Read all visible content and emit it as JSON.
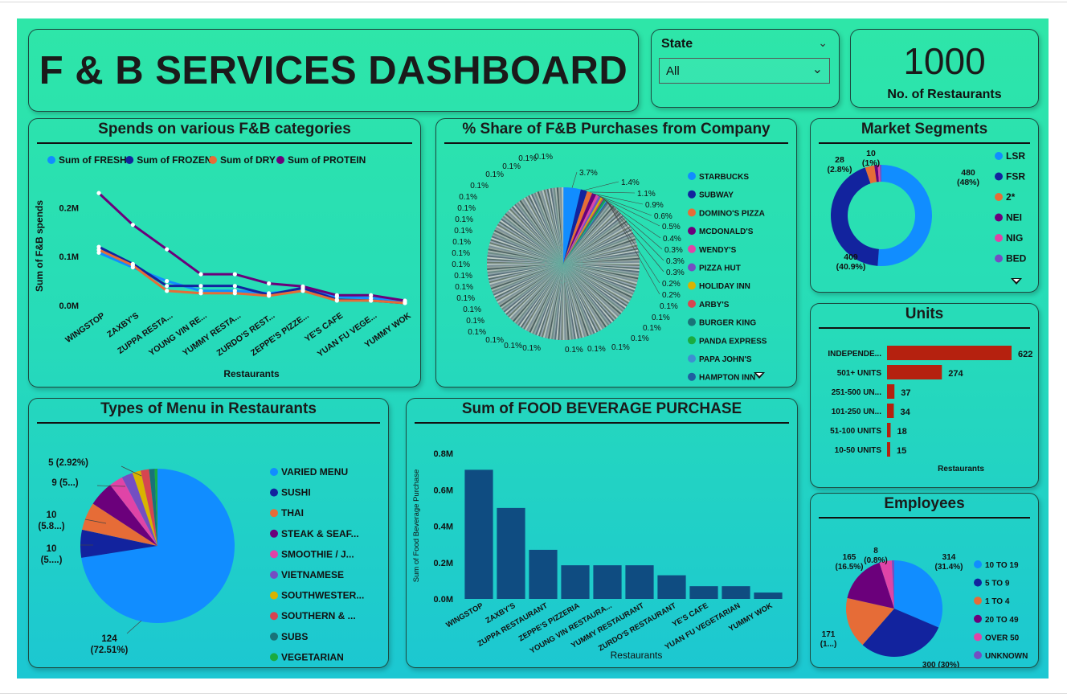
{
  "header": {
    "title": "F & B  SERVICES DASHBOARD"
  },
  "slicer": {
    "label": "State",
    "value": "All"
  },
  "kpi": {
    "value": "1000",
    "label": "No. of Restaurants"
  },
  "colors": {
    "c1": "#118DFF",
    "c2": "#12239E",
    "c3": "#E66C37",
    "c4": "#6B007B",
    "c5": "#E044A7",
    "c6": "#744EC2",
    "c7": "#D9B300",
    "c8": "#D64550",
    "c9": "#197278",
    "c10": "#1AAB40",
    "units_bar": "#B5210F",
    "purchase_bar": "#0F4C81"
  },
  "charts": {
    "spends": {
      "title": "Spends on various F&B categories",
      "chart_data": {
        "type": "line",
        "categories": [
          "WINGSTOP",
          "ZAXBY'S",
          "ZUPPA RESTA...",
          "YOUNG VIN RE...",
          "YUMMY RESTA...",
          "ZURDO'S REST...",
          "ZEPPE'S PIZZE...",
          "YE'S CAFE",
          "YUAN FU VEGE...",
          "YUMMY WOK"
        ],
        "series": [
          {
            "name": "Sum of FRESH",
            "values": [
              0.108,
              0.078,
              0.05,
              0.03,
              0.03,
              0.025,
              0.032,
              0.018,
              0.015,
              0.008
            ]
          },
          {
            "name": "Sum of FROZEN",
            "values": [
              0.12,
              0.085,
              0.04,
              0.04,
              0.04,
              0.022,
              0.036,
              0.012,
              0.01,
              0.005
            ]
          },
          {
            "name": "Sum of DRY",
            "values": [
              0.114,
              0.082,
              0.03,
              0.025,
              0.025,
              0.02,
              0.03,
              0.01,
              0.01,
              0.005
            ]
          },
          {
            "name": "Sum of PROTEIN",
            "values": [
              0.23,
              0.165,
              0.115,
              0.064,
              0.064,
              0.045,
              0.039,
              0.021,
              0.021,
              0.01
            ]
          }
        ],
        "ylabel": "Sum of F&B spends",
        "xlabel": "Restaurants",
        "yticks": [
          "0.0M",
          "0.1M",
          "0.2M"
        ],
        "ylim": [
          0,
          0.25
        ]
      }
    },
    "share": {
      "title": "% Share of F&B Purchases from Company",
      "chart_data": {
        "type": "pie",
        "legend": [
          "STARBUCKS",
          "SUBWAY",
          "DOMINO'S PIZZA",
          "MCDONALD'S",
          "WENDY'S",
          "PIZZA HUT",
          "HOLIDAY INN",
          "ARBY'S",
          "BURGER KING",
          "PANDA EXPRESS",
          "PAPA JOHN'S",
          "HAMPTON INN"
        ],
        "labelled_slices": [
          "3.7%",
          "1.4%",
          "1.1%",
          "0.9%",
          "0.6%",
          "0.5%",
          "0.4%",
          "0.3%",
          "0.3%",
          "0.3%",
          "0.2%",
          "0.2%"
        ],
        "small_slice_label": "0.1%",
        "small_slice_count": 42,
        "values": [
          3.7,
          1.4,
          1.1,
          0.9,
          0.6,
          0.5,
          0.4,
          0.3,
          0.3,
          0.3,
          0.2,
          0.2
        ]
      }
    },
    "segments": {
      "title": "Market Segments",
      "chart_data": {
        "type": "pie",
        "donut": true,
        "labels": [
          "LSR",
          "FSR",
          "2*",
          "NEI",
          "NIG",
          "BED"
        ],
        "values": [
          480,
          409,
          28,
          10,
          6,
          5
        ],
        "slice_labels": [
          [
            "480",
            "(48%)"
          ],
          [
            "409",
            "(40.9%)"
          ],
          [
            "28",
            "(2.8%)"
          ],
          [
            "10",
            "(1%)"
          ]
        ]
      }
    },
    "units": {
      "title": "Units",
      "chart_data": {
        "type": "bar",
        "orientation": "horizontal",
        "categories": [
          "INDEPENDE...",
          "501+ UNITS",
          "251-500 UN...",
          "101-250 UN...",
          "51-100 UNITS",
          "10-50 UNITS"
        ],
        "values": [
          622,
          274,
          37,
          34,
          18,
          15
        ],
        "labels": [
          "622",
          "274",
          "37",
          "34",
          "18",
          "15"
        ],
        "xlabel": "Restaurants"
      }
    },
    "menu": {
      "title": "Types of Menu in Restaurants",
      "chart_data": {
        "type": "pie",
        "legend": [
          "VARIED MENU",
          "SUSHI",
          "THAI",
          "STEAK & SEAF...",
          "SMOOTHIE / J...",
          "VIETNAMESE",
          "SOUTHWESTER...",
          "SOUTHERN & ...",
          "SUBS",
          "VEGETARIAN"
        ],
        "values": [
          124,
          10,
          10,
          9,
          5,
          4,
          3,
          3,
          2,
          1
        ],
        "slice_labels": [
          [
            "124",
            "(72.51%)"
          ],
          [
            "10",
            "(5....)"
          ],
          [
            "10",
            "(5.8...)"
          ],
          [
            "9 (5...)"
          ],
          [
            "5 (2.92%)"
          ]
        ]
      }
    },
    "purchase": {
      "title": "Sum of FOOD BEVERAGE PURCHASE",
      "chart_data": {
        "type": "bar",
        "categories": [
          "WINGSTOP",
          "ZAXBY'S",
          "ZUPPA RESTAURANT",
          "ZEPPE'S PIZZERIA",
          "YOUNG VIN RESTAURA...",
          "YUMMY RESTAURANT",
          "ZURDO'S RESTAURANT",
          "YE'S CAFE",
          "YUAN FU VEGETARIAN",
          "YUMMY WOK"
        ],
        "values": [
          0.71,
          0.5,
          0.27,
          0.185,
          0.185,
          0.185,
          0.13,
          0.07,
          0.07,
          0.035
        ],
        "ylabel": "Sum of Food Beverage Purchase",
        "xlabel": "Restaurants",
        "yticks": [
          "0.0M",
          "0.2M",
          "0.4M",
          "0.6M",
          "0.8M"
        ],
        "ylim": [
          0,
          0.8
        ]
      }
    },
    "employees": {
      "title": "Employees",
      "chart_data": {
        "type": "pie",
        "legend": [
          "10 TO 19",
          "5 TO 9",
          "1 TO 4",
          "20 TO 49",
          "OVER 50",
          "UNKNOWN"
        ],
        "values": [
          314,
          300,
          171,
          165,
          42,
          8
        ],
        "slice_labels": [
          [
            "314",
            "(31.4%)"
          ],
          [
            "300 (30%)"
          ],
          [
            "171",
            "(1...)"
          ],
          [
            "165",
            "(16.5%)"
          ],
          [
            "8",
            "(0.8%)"
          ]
        ]
      }
    }
  }
}
